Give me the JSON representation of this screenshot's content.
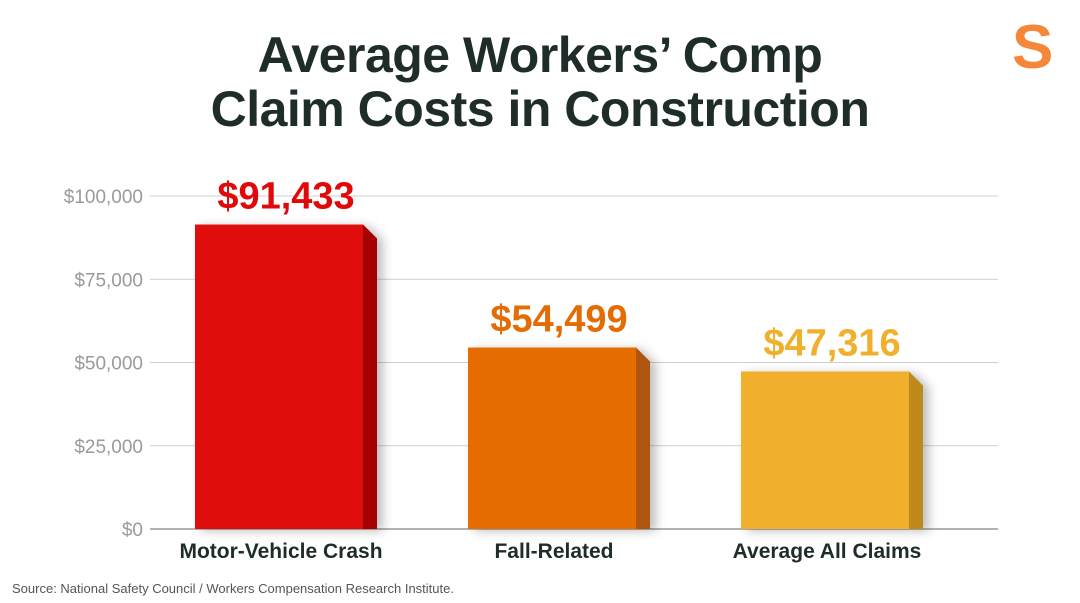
{
  "logo": "S",
  "chart_data": {
    "type": "bar",
    "title_lines": [
      "Average Workers’ Comp",
      "Claim Costs in Construction"
    ],
    "categories": [
      "Motor-Vehicle Crash",
      "Fall-Related",
      "Average All Claims"
    ],
    "values": [
      91433,
      54499,
      47316
    ],
    "data_labels": [
      "$91,433",
      "$54,499",
      "$47,316"
    ],
    "colors": [
      "#e00808",
      "#e46c05",
      "#f0b02e"
    ],
    "side_colors": [
      "#a50606",
      "#b0540a",
      "#bf8a1e"
    ],
    "ylim": [
      0,
      100000
    ],
    "yticks": [
      0,
      25000,
      50000,
      75000,
      100000
    ],
    "ytick_labels": [
      "$0",
      "$25,000",
      "$50,000",
      "$75,000",
      "$100,000"
    ],
    "grid": true,
    "xlabel": "",
    "ylabel": ""
  },
  "source": "Source: National Safety Council / Workers Compensation Research Institute."
}
